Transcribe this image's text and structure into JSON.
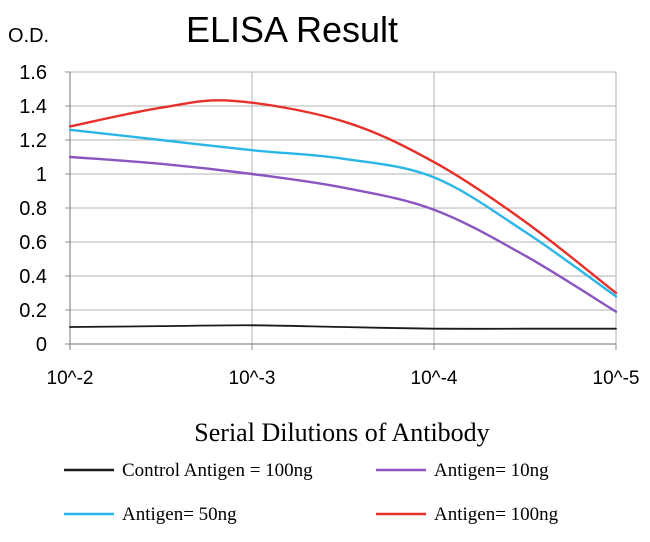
{
  "chart_data": {
    "type": "line",
    "title": "ELISA Result",
    "ylabel": "O.D.",
    "xlabel": "Serial Dilutions of Antibody",
    "x_ticks": [
      "10^-2",
      "10^-3",
      "10^-4",
      "10^-5"
    ],
    "y_ticks": [
      "0",
      "0.2",
      "0.4",
      "0.6",
      "0.8",
      "1",
      "1.2",
      "1.4",
      "1.6"
    ],
    "ylim": [
      0,
      1.6
    ],
    "x_dilution_exponent": [
      -2,
      -3,
      -4,
      -5
    ],
    "grid": true,
    "legend_position": "bottom",
    "series": [
      {
        "name": "Control Antigen = 100ng",
        "color": "#1a1a1a",
        "x": [
          -2,
          -2.5,
          -3,
          -3.5,
          -4,
          -4.5,
          -5
        ],
        "y": [
          0.1,
          0.105,
          0.11,
          0.1,
          0.09,
          0.09,
          0.09
        ]
      },
      {
        "name": "Antigen= 10ng",
        "color": "#8a55c0",
        "x": [
          -2,
          -2.5,
          -3,
          -3.5,
          -4,
          -4.5,
          -5
        ],
        "y": [
          1.1,
          1.06,
          1.0,
          0.92,
          0.79,
          0.52,
          0.19
        ]
      },
      {
        "name": "Antigen= 50ng",
        "color": "#2bb6e8",
        "x": [
          -2,
          -2.5,
          -3,
          -3.5,
          -4,
          -4.5,
          -5
        ],
        "y": [
          1.26,
          1.2,
          1.14,
          1.09,
          0.98,
          0.66,
          0.28
        ]
      },
      {
        "name": "Antigen= 100ng",
        "color": "#e8302a",
        "x": [
          -2,
          -2.5,
          -2.9,
          -3.5,
          -4,
          -4.5,
          -5
        ],
        "y": [
          1.28,
          1.39,
          1.43,
          1.31,
          1.07,
          0.72,
          0.3
        ]
      }
    ]
  }
}
